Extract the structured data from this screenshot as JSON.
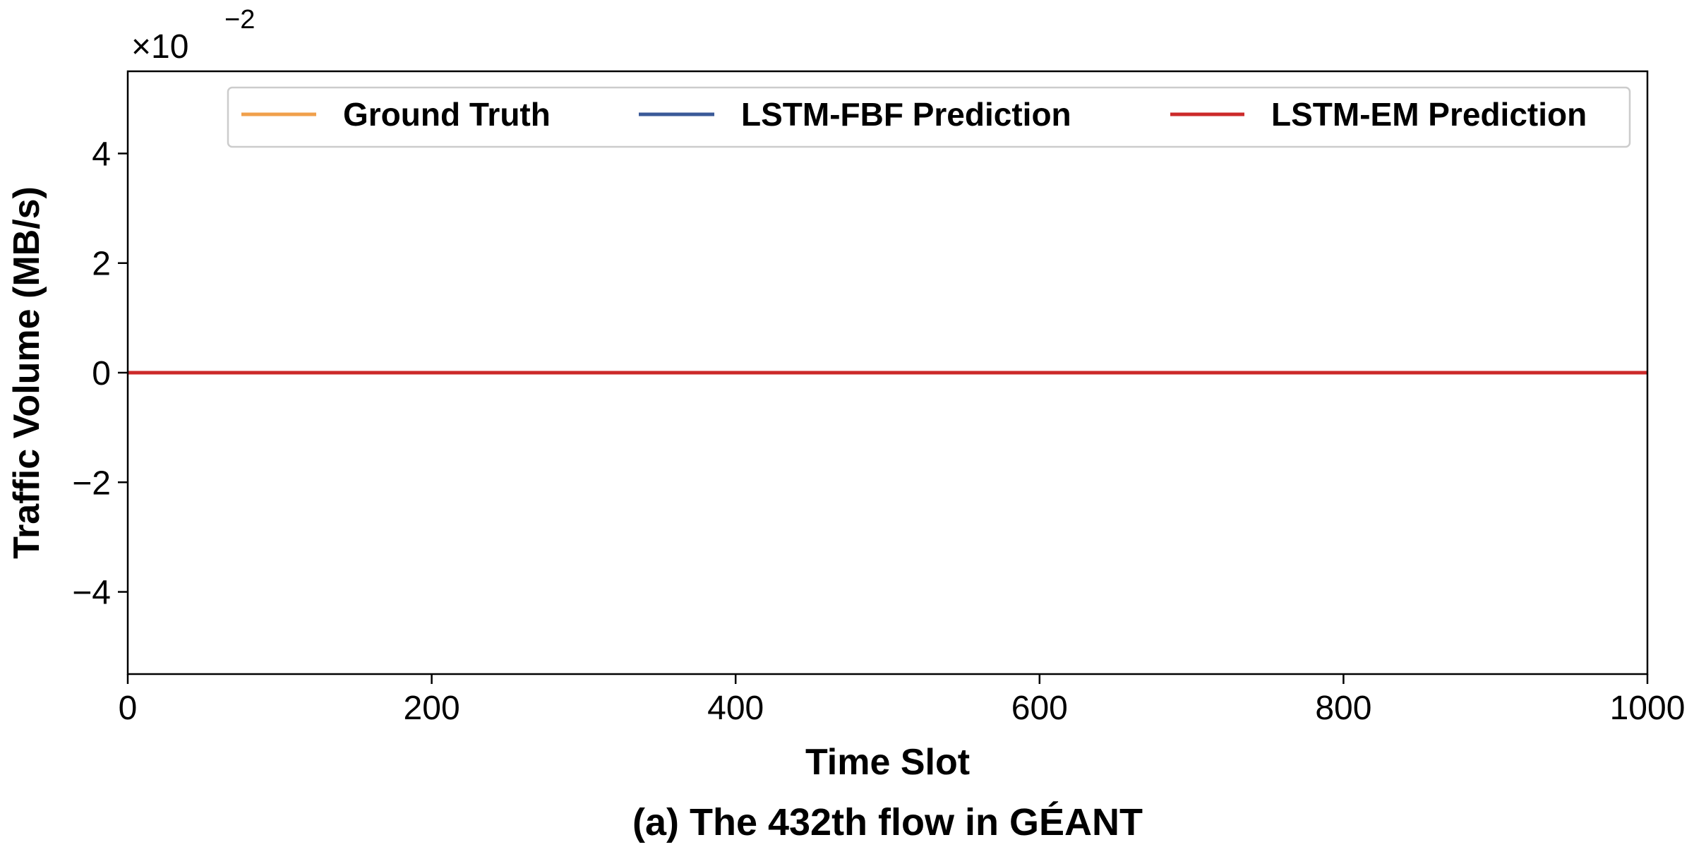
{
  "chart_data": {
    "type": "line",
    "xlabel": "Time Slot",
    "ylabel": "Traffic Volume (MB/s)",
    "caption": "(a) The 432th flow in GÉANT",
    "y_offset_base": "×10",
    "y_offset_exponent": "−2",
    "xlim": [
      0,
      1000
    ],
    "ylim": [
      -5.5,
      5.5
    ],
    "x_ticks": [
      0,
      200,
      400,
      600,
      800,
      1000
    ],
    "x_tick_labels": [
      "0",
      "200",
      "400",
      "600",
      "800",
      "1000"
    ],
    "y_ticks": [
      -4,
      -2,
      0,
      2,
      4
    ],
    "y_tick_labels": [
      "−4",
      "−2",
      "0",
      "2",
      "4"
    ],
    "grid": false,
    "legend_position": "top",
    "series": [
      {
        "name": "Ground Truth",
        "color": "#f0a04b",
        "x": [
          0,
          1000
        ],
        "y": [
          0,
          0
        ]
      },
      {
        "name": "LSTM-FBF Prediction",
        "color": "#3a5a98",
        "x": [
          0,
          1000
        ],
        "y": [
          0,
          0
        ]
      },
      {
        "name": "LSTM-EM Prediction",
        "color": "#cc2a2a",
        "x": [
          0,
          1000
        ],
        "y": [
          0,
          0
        ]
      }
    ]
  }
}
